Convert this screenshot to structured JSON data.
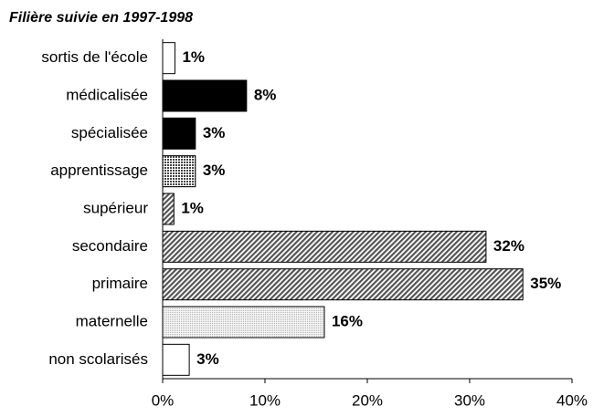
{
  "chart_data": {
    "type": "hbar",
    "title": "Filière suivie en 1997-1998",
    "categories": [
      "sortis de l'école",
      "médicalisée",
      "spécialisée",
      "apprentissage",
      "supérieur",
      "secondaire",
      "primaire",
      "maternelle",
      "non scolarisés"
    ],
    "values": [
      1.2,
      8.2,
      3.2,
      3.2,
      1.1,
      31.6,
      35.2,
      15.8,
      2.6
    ],
    "value_labels": [
      "1%",
      "8%",
      "3%",
      "3%",
      "1%",
      "32%",
      "35%",
      "16%",
      "3%"
    ],
    "colors": [
      "#ffffff",
      "#000000",
      "#000000",
      "#555555",
      "#777777",
      "#777777",
      "#777777",
      "#d8d8d8",
      "#ffffff"
    ],
    "patterns": [
      "solid",
      "solid",
      "solid",
      "checker",
      "hatch",
      "hatch",
      "hatch",
      "dots",
      "solid"
    ],
    "xlim": [
      0,
      40
    ],
    "xticks": [
      {
        "value": 0,
        "label": "0%"
      },
      {
        "value": 10,
        "label": "10%"
      },
      {
        "value": 20,
        "label": "20%"
      },
      {
        "value": 30,
        "label": "30%"
      },
      {
        "value": 40,
        "label": "40%"
      }
    ]
  }
}
